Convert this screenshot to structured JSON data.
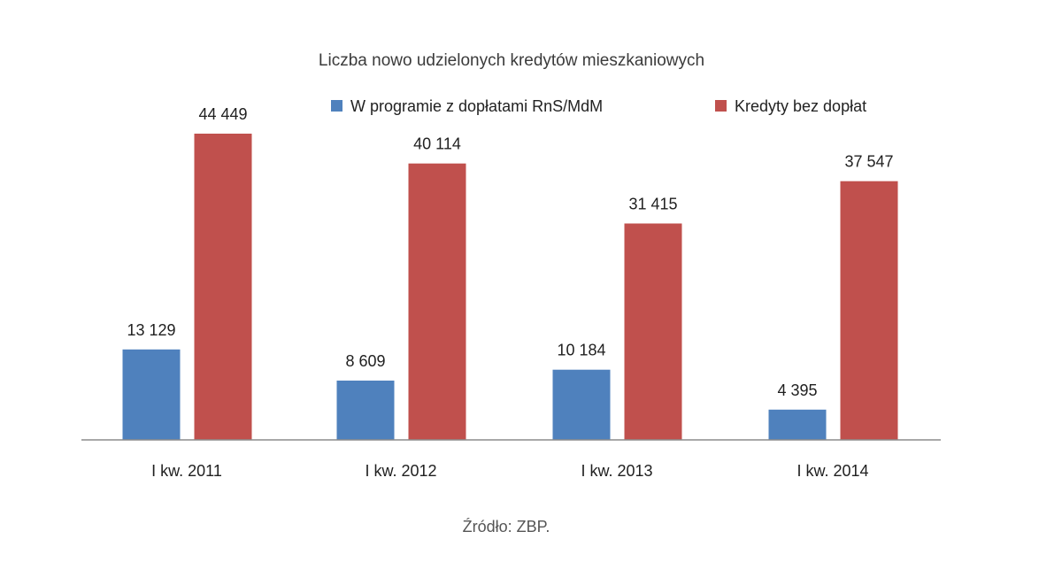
{
  "chart_data": {
    "type": "bar",
    "title": "Liczba nowo udzielonych kredytów mieszkaniowych",
    "categories": [
      "I kw. 2011",
      "I kw. 2012",
      "I kw. 2013",
      "I kw. 2014"
    ],
    "series": [
      {
        "name": "W programie z dopłatami RnS/MdM",
        "color": "#4f81bd",
        "values": [
          13129,
          8609,
          10184,
          4395
        ],
        "labels": [
          "13 129",
          "8 609",
          "10 184",
          "4 395"
        ]
      },
      {
        "name": "Kredyty bez dopłat",
        "color": "#c0504d",
        "values": [
          44449,
          40114,
          31415,
          37547
        ],
        "labels": [
          "44 449",
          "40 114",
          "31 415",
          "37 547"
        ]
      }
    ],
    "ylim": [
      0,
      44449
    ],
    "grid": false,
    "legend_position": "top-right",
    "source_note": "Źródło: ZBP."
  }
}
